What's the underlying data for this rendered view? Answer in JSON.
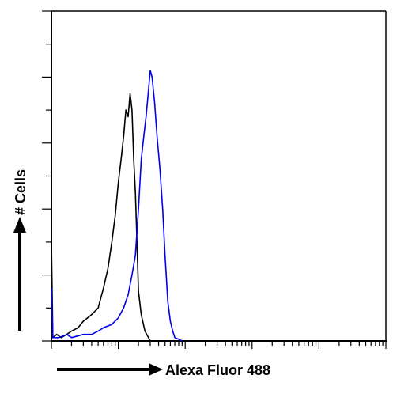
{
  "chart_data": {
    "type": "line",
    "title": "",
    "xlabel": "Alexa Fluor 488",
    "ylabel": "# Cells",
    "x_scale": "log",
    "xlim": [
      1,
      100000
    ],
    "ylim": [
      0,
      100
    ],
    "grid": false,
    "legend": "none",
    "x_tick_labels_shown": false,
    "y_tick_labels_shown": false,
    "series": [
      {
        "color": "#000000",
        "x": [
          1,
          1.05,
          1.2,
          1.4,
          1.7,
          2,
          2.5,
          3,
          4,
          5,
          6,
          7,
          8,
          9,
          10,
          11,
          12,
          13,
          14,
          15,
          16,
          17,
          18,
          19,
          20,
          22,
          25,
          30
        ],
        "y": [
          30,
          1,
          2,
          1,
          2,
          3,
          4,
          6,
          8,
          10,
          16,
          22,
          30,
          38,
          48,
          55,
          62,
          70,
          68,
          75,
          70,
          55,
          45,
          30,
          15,
          8,
          3,
          0
        ]
      },
      {
        "color": "#0000ee",
        "x": [
          1,
          1.05,
          1.3,
          1.7,
          2,
          3,
          4,
          5,
          6,
          8,
          10,
          12,
          14,
          16,
          18,
          20,
          22,
          24,
          26,
          28,
          30,
          32,
          35,
          38,
          42,
          46,
          50,
          55,
          60,
          65,
          70,
          80,
          90
        ],
        "y": [
          16,
          1,
          1,
          2,
          1,
          2,
          2,
          3,
          4,
          5,
          7,
          10,
          14,
          20,
          26,
          40,
          55,
          62,
          68,
          75,
          82,
          80,
          72,
          62,
          52,
          40,
          26,
          12,
          6,
          3,
          1,
          0.5,
          0
        ]
      }
    ]
  }
}
